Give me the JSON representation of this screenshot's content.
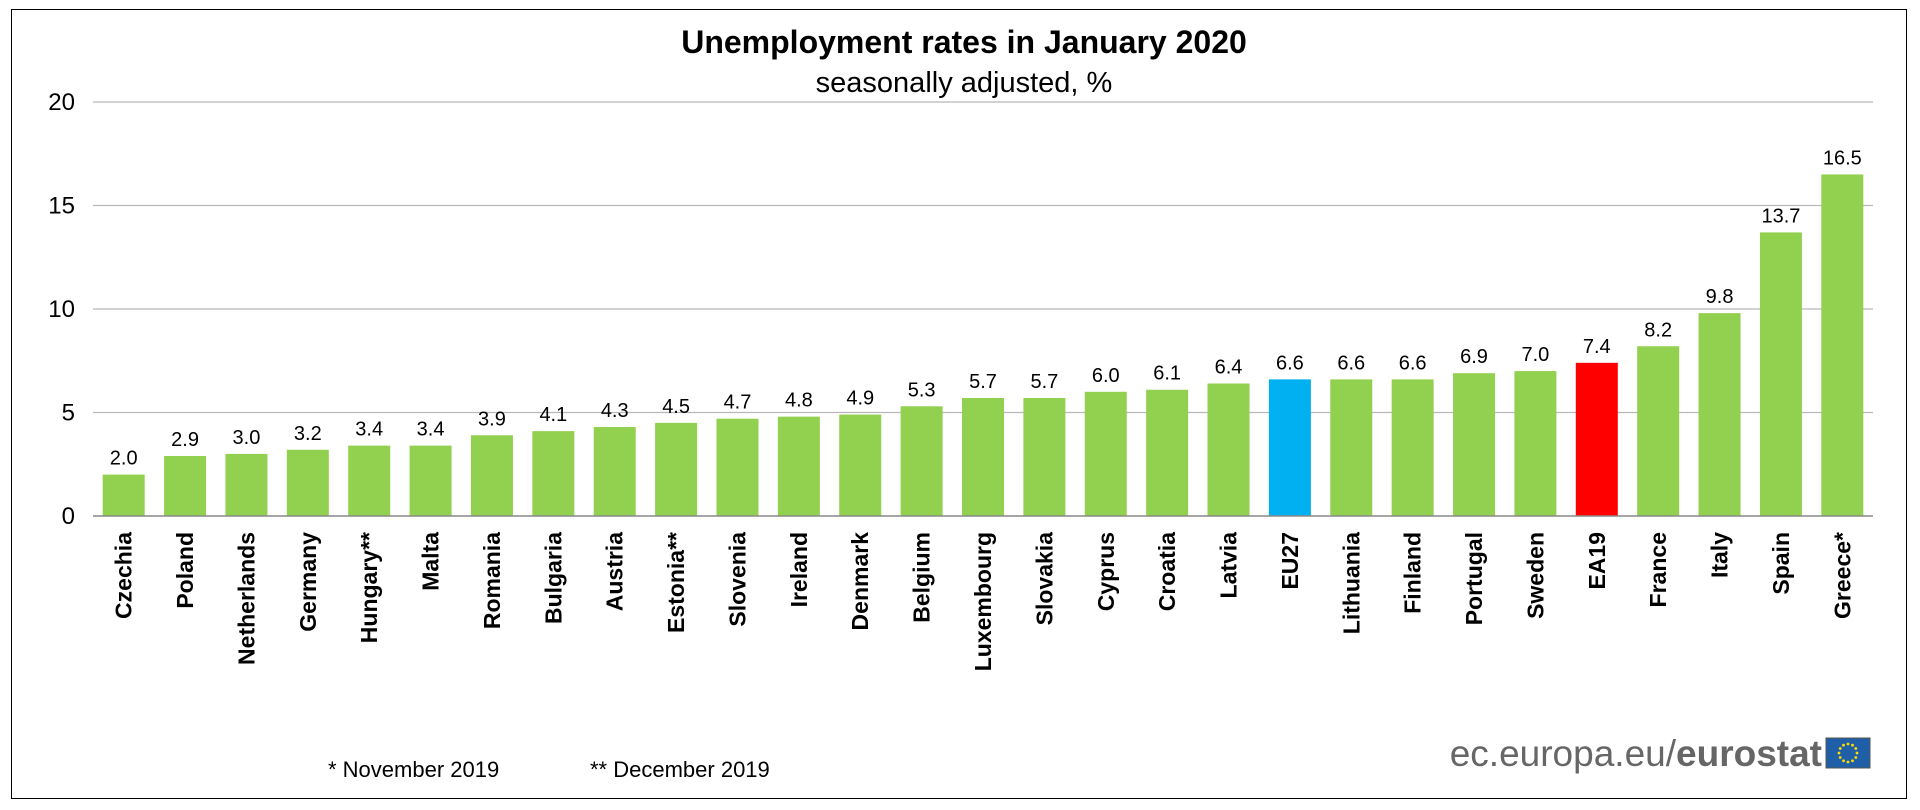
{
  "chart_data": {
    "type": "bar",
    "title": "Unemployment rates in January 2020",
    "subtitle": "seasonally adjusted, %",
    "categories": [
      "Czechia",
      "Poland",
      "Netherlands",
      "Germany",
      "Hungary**",
      "Malta",
      "Romania",
      "Bulgaria",
      "Austria",
      "Estonia**",
      "Slovenia",
      "Ireland",
      "Denmark",
      "Belgium",
      "Luxembourg",
      "Slovakia",
      "Cyprus",
      "Croatia",
      "Latvia",
      "EU27",
      "Lithuania",
      "Finland",
      "Portugal",
      "Sweden",
      "EA19",
      "France",
      "Italy",
      "Spain",
      "Greece*"
    ],
    "values": [
      2.0,
      2.9,
      3.0,
      3.2,
      3.4,
      3.4,
      3.9,
      4.1,
      4.3,
      4.5,
      4.7,
      4.8,
      4.9,
      5.3,
      5.7,
      5.7,
      6.0,
      6.1,
      6.4,
      6.6,
      6.6,
      6.6,
      6.9,
      7.0,
      7.4,
      8.2,
      9.8,
      13.7,
      16.5
    ],
    "value_labels": [
      "2.0",
      "2.9",
      "3.0",
      "3.2",
      "3.4",
      "3.4",
      "3.9",
      "4.1",
      "4.3",
      "4.5",
      "4.7",
      "4.8",
      "4.9",
      "5.3",
      "5.7",
      "5.7",
      "6.0",
      "6.1",
      "6.4",
      "6.6",
      "6.6",
      "6.6",
      "6.9",
      "7.0",
      "7.4",
      "8.2",
      "9.8",
      "13.7",
      "16.5"
    ],
    "bar_colors": {
      "default": "#92d050",
      "EU27": "#00b0f0",
      "EA19": "#ff0000"
    },
    "ylim": [
      0,
      20
    ],
    "yticks": [
      0,
      5,
      10,
      15,
      20
    ],
    "grid": true,
    "xlabel": "",
    "ylabel": ""
  },
  "footnotes": {
    "single_star": "*  November 2019",
    "double_star": "** December 2019"
  },
  "source": {
    "prefix": "ec.europa.eu/",
    "brand": "eurostat",
    "flag_color": "#1f5fa8",
    "star_color": "#ffdd00"
  }
}
